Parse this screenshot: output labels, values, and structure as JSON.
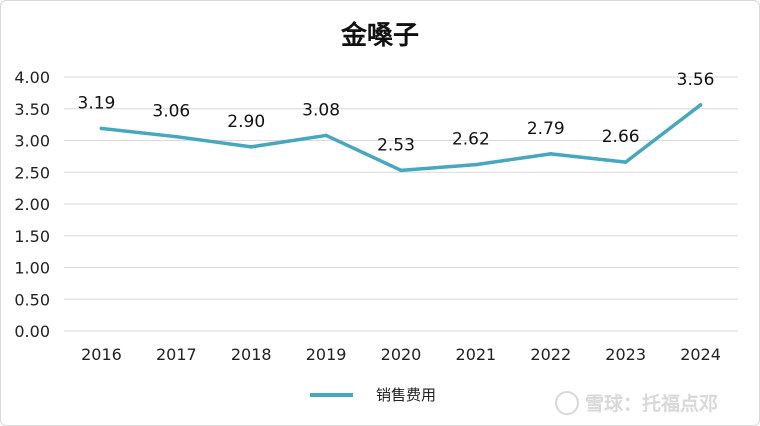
{
  "chart_data": {
    "type": "line",
    "title": "金嗓子",
    "categories": [
      "2016",
      "2017",
      "2018",
      "2019",
      "2020",
      "2021",
      "2022",
      "2023",
      "2024"
    ],
    "series": [
      {
        "name": "销售费用",
        "values": [
          3.19,
          3.06,
          2.9,
          3.08,
          2.53,
          2.62,
          2.79,
          2.66,
          3.56
        ],
        "data_labels": [
          "3.19",
          "3.06",
          "2.90",
          "3.08",
          "2.53",
          "2.62",
          "2.79",
          "2.66",
          "3.56"
        ],
        "color": "#46a7bf"
      }
    ],
    "ylim": [
      0,
      4
    ],
    "yticks": [
      "0.00",
      "0.50",
      "1.00",
      "1.50",
      "2.00",
      "2.50",
      "3.00",
      "3.50",
      "4.00"
    ],
    "ytick_values": [
      0,
      0.5,
      1,
      1.5,
      2,
      2.5,
      3,
      3.5,
      4
    ],
    "grid": true,
    "legend_position": "bottom",
    "xlabel": "",
    "ylabel": ""
  },
  "colors": {
    "grid": "#d9d9d9",
    "text": "#222222",
    "series": "#46a7bf"
  },
  "watermark": "雪球：托福点邓"
}
